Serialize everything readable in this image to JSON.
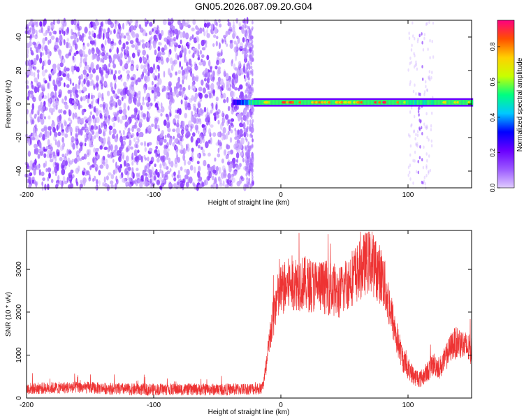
{
  "title": "GN05.2026.087.09.20.G04",
  "colors": {
    "snr_line": "#ee3333",
    "colormap": [
      "#e0ccff",
      "#9b59ff",
      "#6a00ff",
      "#0000ff",
      "#00c8ff",
      "#00ff80",
      "#c8ff00",
      "#ffd000",
      "#ff5000",
      "#ff0080"
    ]
  },
  "chart_data": [
    {
      "type": "heatmap",
      "name": "spectrogram",
      "xlabel": "Height of straight line (km)",
      "ylabel": "Frequency (Hz)",
      "xlim": [
        -200,
        150
      ],
      "ylim": [
        -50,
        50
      ],
      "xticks": [
        -200,
        -100,
        0,
        100
      ],
      "yticks": [
        -40,
        -20,
        0,
        20,
        40
      ],
      "colorbar": {
        "label": "Normalized spectral amplitude",
        "range": [
          0,
          0.95
        ],
        "ticks": [
          "0.0",
          "0.2",
          "0.4",
          "0.6",
          "0.8"
        ]
      },
      "noise_region": {
        "x": [
          -200,
          -22
        ],
        "amplitude": [
          0.02,
          0.18
        ]
      },
      "carrier": {
        "frequency": 1,
        "x": [
          -22,
          150
        ],
        "amplitude_profile": [
          [
            -38,
            0.25
          ],
          [
            -30,
            0.35
          ],
          [
            -22,
            0.55
          ],
          [
            -10,
            0.65
          ],
          [
            0,
            0.8
          ],
          [
            20,
            0.75
          ],
          [
            40,
            0.7
          ],
          [
            60,
            0.75
          ],
          [
            70,
            0.8
          ],
          [
            80,
            0.92
          ],
          [
            90,
            0.85
          ],
          [
            100,
            0.55
          ],
          [
            110,
            0.5
          ],
          [
            120,
            0.6
          ],
          [
            130,
            0.65
          ],
          [
            150,
            0.6
          ]
        ]
      },
      "stray_band_x": [
        108,
        112
      ]
    },
    {
      "type": "line",
      "name": "snr",
      "xlabel": "Height of straight line (km)",
      "ylabel": "SNR (10 * v/v)",
      "xlim": [
        -200,
        150
      ],
      "ylim": [
        0,
        3900
      ],
      "xticks": [
        -200,
        -100,
        0,
        100
      ],
      "yticks": [
        0,
        1000,
        2000,
        3000
      ],
      "series": [
        {
          "points": [
            [
              -200,
              220
            ],
            [
              -160,
              250
            ],
            [
              -120,
              200
            ],
            [
              -80,
              200
            ],
            [
              -40,
              200
            ],
            [
              -15,
              220
            ],
            [
              -12,
              600
            ],
            [
              -8,
              1500
            ],
            [
              -4,
              2200
            ],
            [
              0,
              2500
            ],
            [
              10,
              2700
            ],
            [
              20,
              2650
            ],
            [
              30,
              2600
            ],
            [
              40,
              2550
            ],
            [
              45,
              2400
            ],
            [
              50,
              2600
            ],
            [
              55,
              2800
            ],
            [
              60,
              2900
            ],
            [
              65,
              3100
            ],
            [
              70,
              3200
            ],
            [
              75,
              3000
            ],
            [
              80,
              2800
            ],
            [
              85,
              2200
            ],
            [
              88,
              1800
            ],
            [
              92,
              1300
            ],
            [
              96,
              900
            ],
            [
              100,
              700
            ],
            [
              105,
              500
            ],
            [
              110,
              450
            ],
            [
              115,
              600
            ],
            [
              120,
              800
            ],
            [
              125,
              700
            ],
            [
              130,
              950
            ],
            [
              135,
              1250
            ],
            [
              140,
              1300
            ],
            [
              145,
              1200
            ],
            [
              150,
              1100
            ]
          ]
        }
      ]
    }
  ]
}
